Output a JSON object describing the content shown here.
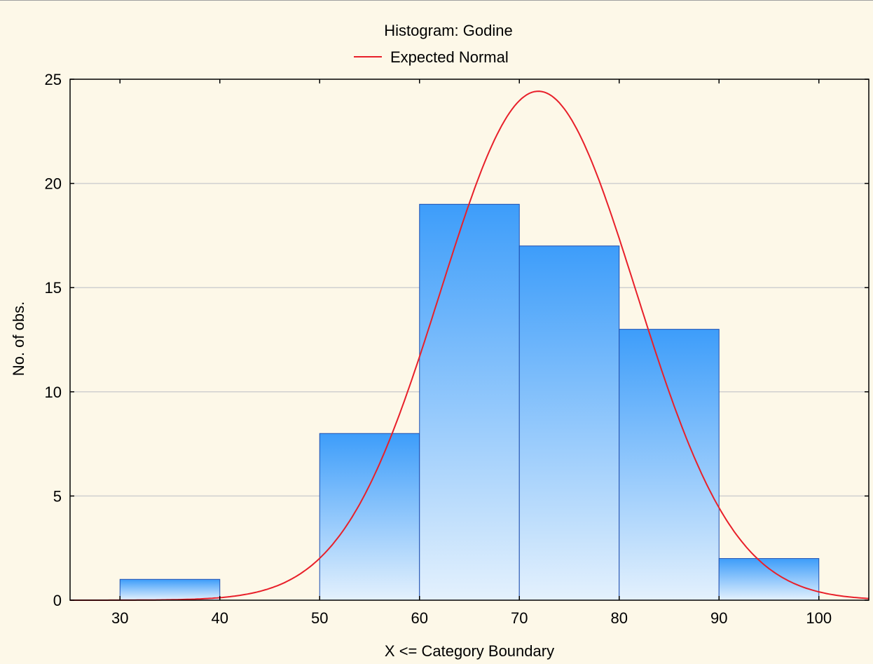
{
  "chart_data": {
    "type": "bar",
    "title": "Histogram: Godine",
    "xlabel": "X <= Category Boundary",
    "ylabel": "No. of obs.",
    "xlim": [
      25,
      105
    ],
    "ylim": [
      0,
      25
    ],
    "xticks": [
      30,
      40,
      50,
      60,
      70,
      80,
      90,
      100
    ],
    "yticks": [
      0,
      5,
      10,
      15,
      20,
      25
    ],
    "grid": "horizontal",
    "legend": "top-center",
    "bins": [
      {
        "from": 30,
        "to": 40,
        "count": 1
      },
      {
        "from": 40,
        "to": 50,
        "count": 0
      },
      {
        "from": 50,
        "to": 60,
        "count": 8
      },
      {
        "from": 60,
        "to": 70,
        "count": 19
      },
      {
        "from": 70,
        "to": 80,
        "count": 17
      },
      {
        "from": 80,
        "to": 90,
        "count": 13
      },
      {
        "from": 90,
        "to": 100,
        "count": 2
      }
    ],
    "series": [
      {
        "name": "Expected Normal",
        "type": "line",
        "color": "#e8202a",
        "mean": 71.9,
        "sd": 9.8,
        "n": 60,
        "bin_width": 10
      }
    ],
    "bar_colors": {
      "top": "#3d9dfa",
      "bottom": "#e4f1fd",
      "edge": "#1f4fb0"
    }
  }
}
